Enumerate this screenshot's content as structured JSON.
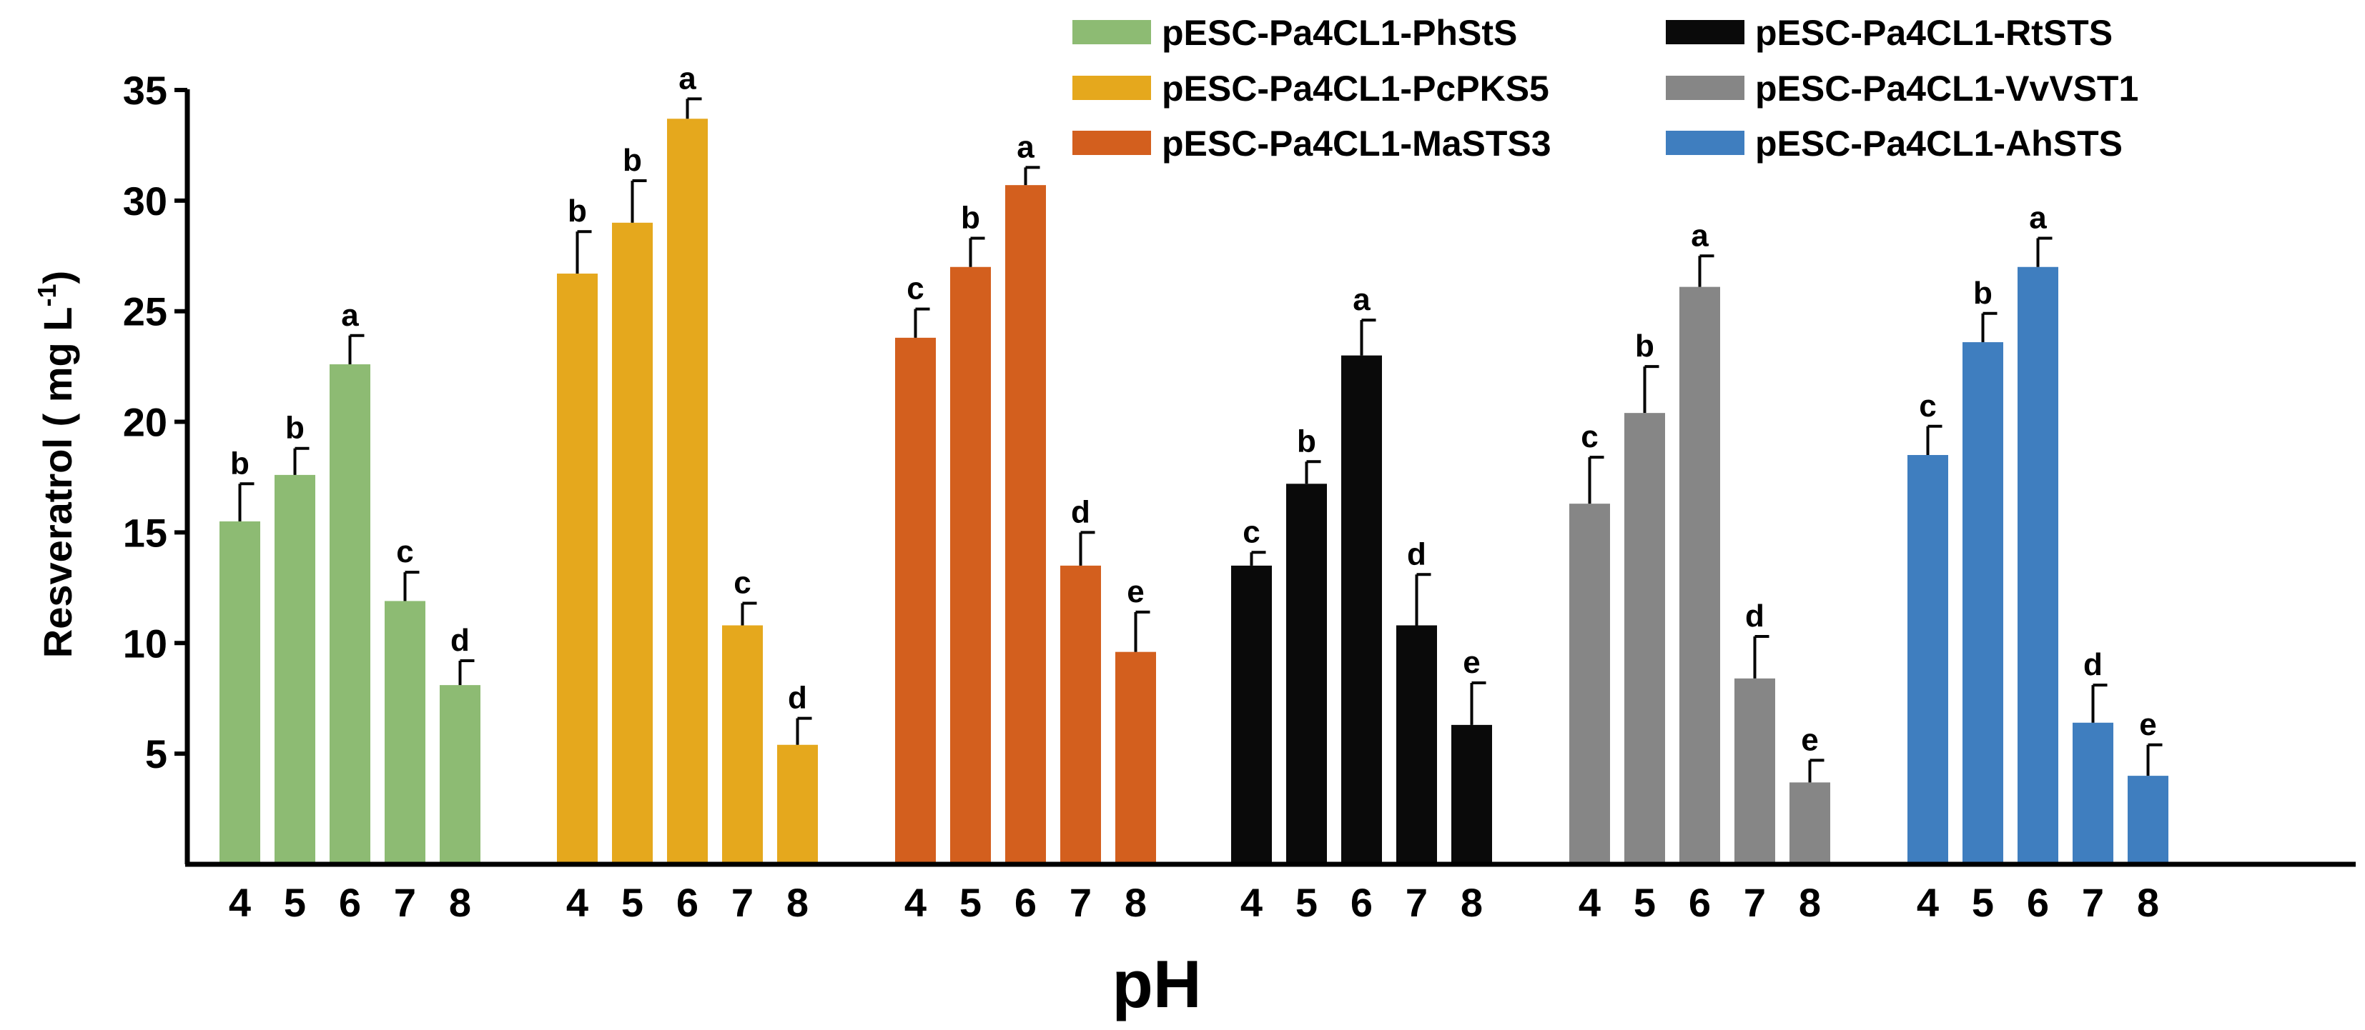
{
  "chart_data": {
    "type": "bar",
    "title": "",
    "xlabel": "pH",
    "ylabel": "Resveratrol ( mg L",
    "ylabel_superscript": "-1",
    "ylabel_close": ")",
    "ylim": [
      0,
      36
    ],
    "yticks": [
      5,
      10,
      15,
      20,
      25,
      30,
      35
    ],
    "grid": false,
    "legend_position": "top-right",
    "categories": [
      "4",
      "5",
      "6",
      "7",
      "8"
    ],
    "series": [
      {
        "name": "pESC-Pa4CL1-PhStS",
        "color": "#8dbb73",
        "values": [
          15.5,
          17.6,
          22.6,
          11.9,
          8.1
        ],
        "errors": [
          1.7,
          1.2,
          1.3,
          1.3,
          1.1
        ],
        "letters": [
          "b",
          "b",
          "a",
          "c",
          "d"
        ]
      },
      {
        "name": "pESC-Pa4CL1-PcPKS5",
        "color": "#e5a81d",
        "values": [
          26.7,
          29.0,
          33.7,
          10.8,
          5.4
        ],
        "errors": [
          1.9,
          1.9,
          0.9,
          1.0,
          1.2
        ],
        "letters": [
          "b",
          "b",
          "a",
          "c",
          "d"
        ]
      },
      {
        "name": "pESC-Pa4CL1-MaSTS3",
        "color": "#d35f1e",
        "values": [
          23.8,
          27.0,
          30.7,
          13.5,
          9.6
        ],
        "errors": [
          1.3,
          1.3,
          0.8,
          1.5,
          1.8
        ],
        "letters": [
          "c",
          "b",
          "a",
          "d",
          "e"
        ]
      },
      {
        "name": "pESC-Pa4CL1-RtSTS",
        "color": "#0a0a0a",
        "values": [
          13.5,
          17.2,
          23.0,
          10.8,
          6.3
        ],
        "errors": [
          0.6,
          1.0,
          1.6,
          2.3,
          1.9
        ],
        "letters": [
          "c",
          "b",
          "a",
          "d",
          "e"
        ]
      },
      {
        "name": "pESC-Pa4CL1-VvVST1",
        "color": "#868686",
        "values": [
          16.3,
          20.4,
          26.1,
          8.4,
          3.7
        ],
        "errors": [
          2.1,
          2.1,
          1.4,
          1.9,
          1.0
        ],
        "letters": [
          "c",
          "b",
          "a",
          "d",
          "e"
        ]
      },
      {
        "name": "pESC-Pa4CL1-AhSTS",
        "color": "#3f7ebf",
        "values": [
          18.5,
          23.6,
          27.0,
          6.4,
          4.0
        ],
        "errors": [
          1.3,
          1.3,
          1.3,
          1.7,
          1.4
        ],
        "letters": [
          "c",
          "b",
          "a",
          "d",
          "e"
        ]
      }
    ]
  }
}
